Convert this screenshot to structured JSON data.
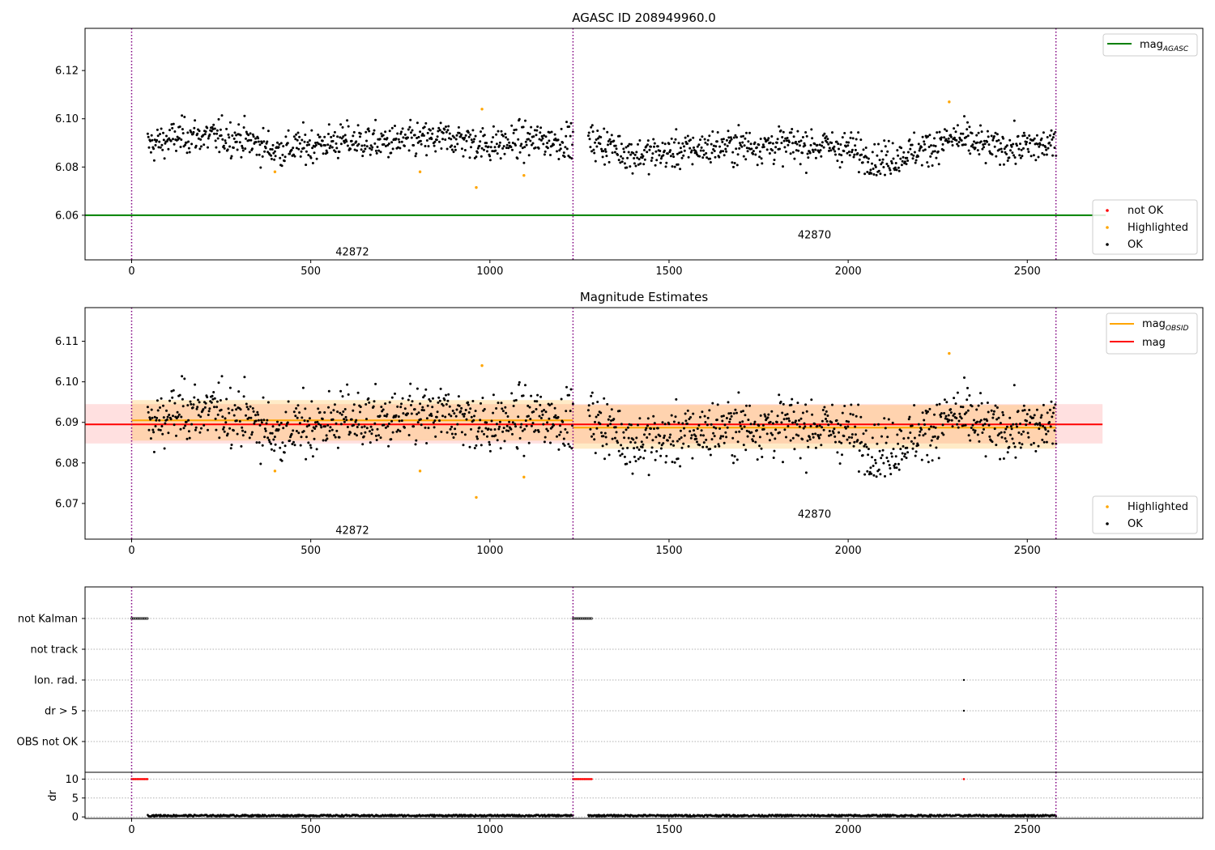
{
  "chart_data": [
    {
      "id": "panel1",
      "type": "scatter",
      "title": "AGASC ID 208949960.0",
      "xlim": [
        -130,
        2990
      ],
      "ylim": [
        6.0415,
        6.1375
      ],
      "xticks": [
        0,
        500,
        1000,
        1500,
        2000,
        2500
      ],
      "yticks": [
        6.06,
        6.08,
        6.1,
        6.12
      ],
      "obs_boundaries": [
        0,
        1232,
        2580
      ],
      "obs_labels": [
        {
          "text": "42872",
          "x": 616,
          "y": 6.045
        },
        {
          "text": "42870",
          "x": 1906,
          "y": 6.052
        }
      ],
      "mag_agasc": 6.06,
      "mag_agasc_legend": "mag",
      "mag_agasc_legend_sub": "AGASC",
      "series": [
        {
          "name": "not OK",
          "color": "#ff0000",
          "points": []
        },
        {
          "name": "Highlighted",
          "color": "#ffa500",
          "points": [
            [
              400,
              6.078
            ],
            [
              805,
              6.078
            ],
            [
              962,
              6.0715
            ],
            [
              978,
              6.104
            ],
            [
              1095,
              6.0765
            ],
            [
              2282,
              6.107
            ]
          ]
        },
        {
          "name": "OK",
          "color": "#000000",
          "segments": [
            {
              "x0": 45,
              "x1": 1232,
              "n": 660,
              "curve": [
                [
                  45,
                  6.089
                ],
                [
                  150,
                  6.093
                ],
                [
                  300,
                  6.092
                ],
                [
                  400,
                  6.087
                ],
                [
                  500,
                  6.089
                ],
                [
                  600,
                  6.091
                ],
                [
                  700,
                  6.09
                ],
                [
                  800,
                  6.091
                ],
                [
                  900,
                  6.092
                ],
                [
                  1000,
                  6.089
                ],
                [
                  1100,
                  6.091
                ],
                [
                  1232,
                  6.091
                ]
              ]
            },
            {
              "x0": 1275,
              "x1": 2580,
              "n": 720,
              "curve": [
                [
                  1275,
                  6.091
                ],
                [
                  1350,
                  6.088
                ],
                [
                  1400,
                  6.085
                ],
                [
                  1500,
                  6.086
                ],
                [
                  1600,
                  6.088
                ],
                [
                  1700,
                  6.089
                ],
                [
                  1800,
                  6.089
                ],
                [
                  1900,
                  6.089
                ],
                [
                  2000,
                  6.088
                ],
                [
                  2080,
                  6.082
                ],
                [
                  2200,
                  6.087
                ],
                [
                  2300,
                  6.092
                ],
                [
                  2400,
                  6.088
                ],
                [
                  2580,
                  6.089
                ]
              ]
            }
          ]
        }
      ]
    },
    {
      "id": "panel2",
      "type": "scatter",
      "title": "Magnitude Estimates",
      "xlim": [
        -130,
        2990
      ],
      "ylim": [
        6.0612,
        6.1183
      ],
      "xticks": [
        0,
        500,
        1000,
        1500,
        2000,
        2500
      ],
      "yticks": [
        6.07,
        6.08,
        6.09,
        6.1,
        6.11
      ],
      "obs_boundaries": [
        0,
        1232,
        2580
      ],
      "obs_labels": [
        {
          "text": "42872",
          "x": 616,
          "y": 6.0635
        },
        {
          "text": "42870",
          "x": 1906,
          "y": 6.0675
        }
      ],
      "mag": 6.0895,
      "mag_band": [
        6.0848,
        6.0945
      ],
      "mag_line_xlim": [
        -130,
        2710
      ],
      "mag_obsid": [
        {
          "x0": 0,
          "x1": 1232,
          "value": 6.0905,
          "band": [
            6.0855,
            6.0955
          ]
        },
        {
          "x0": 1232,
          "x1": 2580,
          "value": 6.0887,
          "band": [
            6.0835,
            6.0943
          ]
        }
      ],
      "series": [
        {
          "name": "Highlighted",
          "color": "#ffa500",
          "points": [
            [
              400,
              6.078
            ],
            [
              805,
              6.078
            ],
            [
              962,
              6.0715
            ],
            [
              978,
              6.104
            ],
            [
              1095,
              6.0765
            ],
            [
              2282,
              6.107
            ]
          ]
        },
        {
          "name": "OK",
          "color": "#000000",
          "same_as": "panel1"
        }
      ]
    },
    {
      "id": "panel3",
      "type": "scatter",
      "title": "",
      "xlim": [
        -130,
        2990
      ],
      "categories": [
        "not Kalman",
        "not track",
        "Ion. rad.",
        "dr > 5",
        "OBS not OK"
      ],
      "flags": {
        "not Kalman": [
          [
            0,
            45
          ],
          [
            1232,
            1285
          ]
        ],
        "not track": [],
        "Ion. rad.": [
          [
            2323,
            2323
          ]
        ],
        "dr > 5": [
          [
            2323,
            2323
          ]
        ],
        "OBS not OK": []
      }
    },
    {
      "id": "panel4",
      "type": "scatter",
      "title": "",
      "ylabel": "dr",
      "xlim": [
        -130,
        2990
      ],
      "ylim": [
        -0.4,
        11.8
      ],
      "yticks": [
        0,
        5,
        10
      ],
      "xticks": [
        0,
        500,
        1000,
        1500,
        2000,
        2500
      ],
      "clipped": [
        [
          0,
          45
        ],
        [
          1232,
          1285
        ],
        [
          2323,
          2323
        ]
      ],
      "clip_value": 10,
      "baseline": 0.3
    }
  ]
}
